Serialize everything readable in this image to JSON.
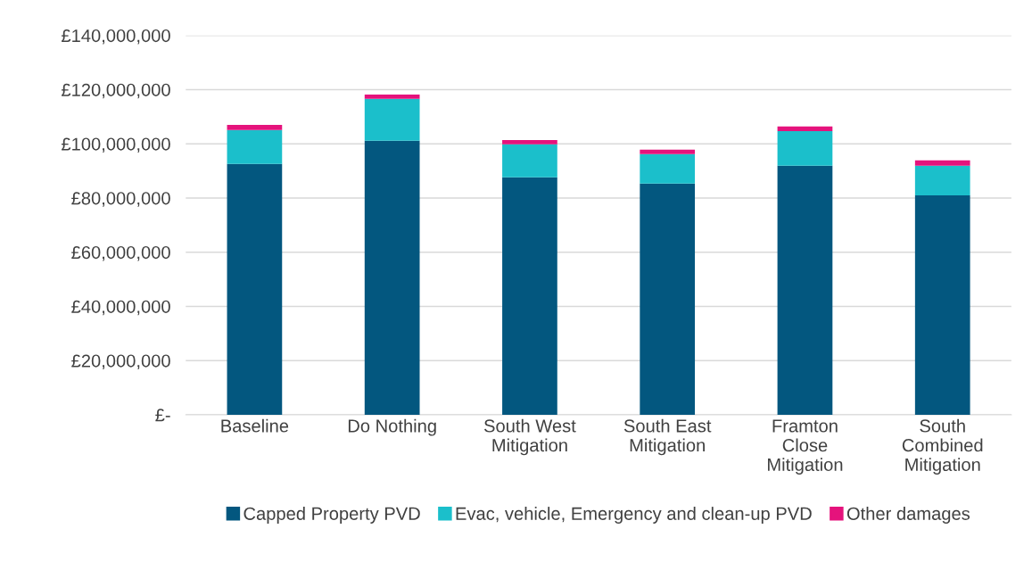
{
  "chart_data": {
    "type": "bar",
    "stacked": true,
    "categories": [
      "Baseline",
      "Do Nothing",
      "South West Mitigation",
      "South East Mitigation",
      "Framton Close Mitigation",
      "South Combined Mitigation"
    ],
    "series": [
      {
        "name": "Capped Property PVD",
        "color": "#03577f",
        "values": [
          92600000,
          101100000,
          87600000,
          85300000,
          91900000,
          81000000
        ]
      },
      {
        "name": "Evac, vehicle, Emergency and clean-up PVD",
        "color": "#1bbfcb",
        "values": [
          12500000,
          15500000,
          12200000,
          10900000,
          12800000,
          10900000
        ]
      },
      {
        "name": "Other damages",
        "color": "#e5137c",
        "values": [
          1900000,
          1600000,
          1600000,
          1600000,
          1700000,
          2000000
        ]
      }
    ],
    "ylim": [
      0,
      140000000
    ],
    "yticks": [
      {
        "value": 0,
        "label": "£-"
      },
      {
        "value": 20000000,
        "label": "£20,000,000"
      },
      {
        "value": 40000000,
        "label": "£40,000,000"
      },
      {
        "value": 60000000,
        "label": "£60,000,000"
      },
      {
        "value": 80000000,
        "label": "£80,000,000"
      },
      {
        "value": 100000000,
        "label": "£100,000,000"
      },
      {
        "value": 120000000,
        "label": "£120,000,000"
      },
      {
        "value": 140000000,
        "label": "£140,000,000"
      }
    ],
    "grid": "y",
    "legend": "bottom"
  }
}
